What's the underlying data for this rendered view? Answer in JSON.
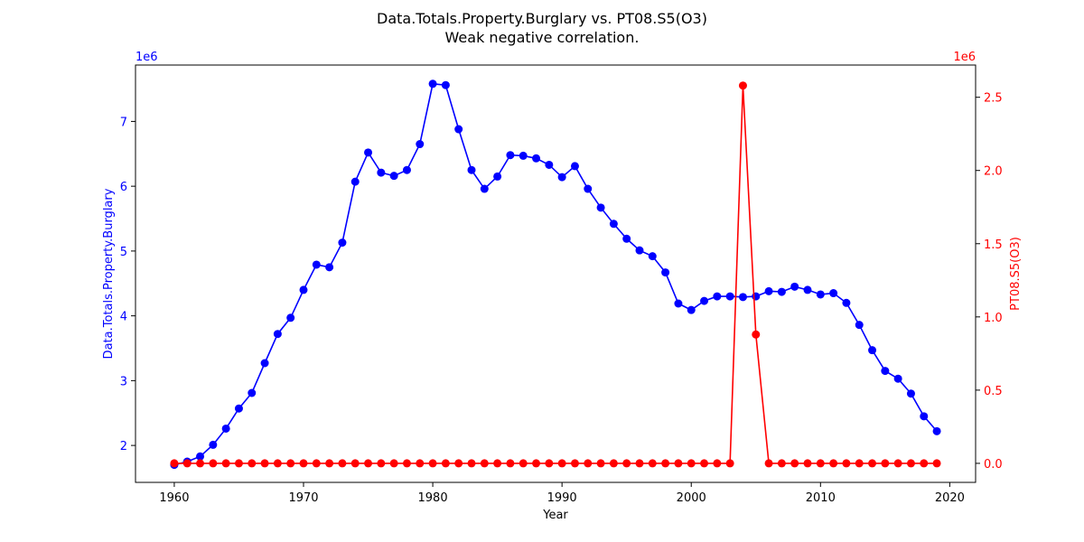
{
  "chart_data": {
    "type": "line",
    "title": "Data.Totals.Property.Burglary vs. PT08.S5(O3)",
    "subtitle": "Weak negative correlation.",
    "xlabel": "Year",
    "xlim": [
      1957,
      2022
    ],
    "x_ticks": [
      1960,
      1970,
      1980,
      1990,
      2000,
      2010,
      2020
    ],
    "left_axis": {
      "label": "Data.Totals.Property.Burglary",
      "color": "#0000ff",
      "offset_text": "1e6",
      "ylim": [
        1.43,
        7.87
      ],
      "ticks": [
        2,
        3,
        4,
        5,
        6,
        7
      ]
    },
    "right_axis": {
      "label": "PT08.S5(O3)",
      "color": "#ff0000",
      "offset_text": "1e6",
      "ylim": [
        -0.13,
        2.72
      ],
      "ticks": [
        "0.0",
        "0.5",
        "1.0",
        "1.5",
        "2.0",
        "2.5"
      ]
    },
    "x": [
      1960,
      1961,
      1962,
      1963,
      1964,
      1965,
      1966,
      1967,
      1968,
      1969,
      1970,
      1971,
      1972,
      1973,
      1974,
      1975,
      1976,
      1977,
      1978,
      1979,
      1980,
      1981,
      1982,
      1983,
      1984,
      1985,
      1986,
      1987,
      1988,
      1989,
      1990,
      1991,
      1992,
      1993,
      1994,
      1995,
      1996,
      1997,
      1998,
      1999,
      2000,
      2001,
      2002,
      2003,
      2004,
      2005,
      2006,
      2007,
      2008,
      2009,
      2010,
      2011,
      2012,
      2013,
      2014,
      2015,
      2016,
      2017,
      2018,
      2019
    ],
    "series": [
      {
        "name": "Data.Totals.Property.Burglary",
        "color": "#0000ff",
        "axis": "left",
        "values": [
          1.7,
          1.75,
          1.83,
          2.01,
          2.26,
          2.57,
          2.81,
          3.27,
          3.72,
          3.97,
          4.4,
          4.79,
          4.75,
          5.13,
          6.07,
          6.52,
          6.21,
          6.16,
          6.25,
          6.65,
          7.58,
          7.56,
          6.88,
          6.25,
          5.96,
          6.15,
          6.48,
          6.47,
          6.43,
          6.33,
          6.14,
          6.31,
          5.96,
          5.67,
          5.42,
          5.19,
          5.01,
          4.92,
          4.67,
          4.19,
          4.09,
          4.23,
          4.3,
          4.3,
          4.29,
          4.3,
          4.38,
          4.37,
          4.45,
          4.4,
          4.33,
          4.35,
          4.2,
          3.86,
          3.47,
          3.15,
          3.03,
          2.8,
          2.45,
          2.22
        ]
      },
      {
        "name": "PT08.S5(O3)",
        "color": "#ff0000",
        "axis": "right",
        "values": [
          0,
          0,
          0,
          0,
          0,
          0,
          0,
          0,
          0,
          0,
          0,
          0,
          0,
          0,
          0,
          0,
          0,
          0,
          0,
          0,
          0,
          0,
          0,
          0,
          0,
          0,
          0,
          0,
          0,
          0,
          0,
          0,
          0,
          0,
          0,
          0,
          0,
          0,
          0,
          0,
          0,
          0,
          0,
          0,
          2.58,
          0.88,
          0,
          0,
          0,
          0,
          0,
          0,
          0,
          0,
          0,
          0,
          0,
          0,
          0,
          0
        ]
      }
    ]
  }
}
